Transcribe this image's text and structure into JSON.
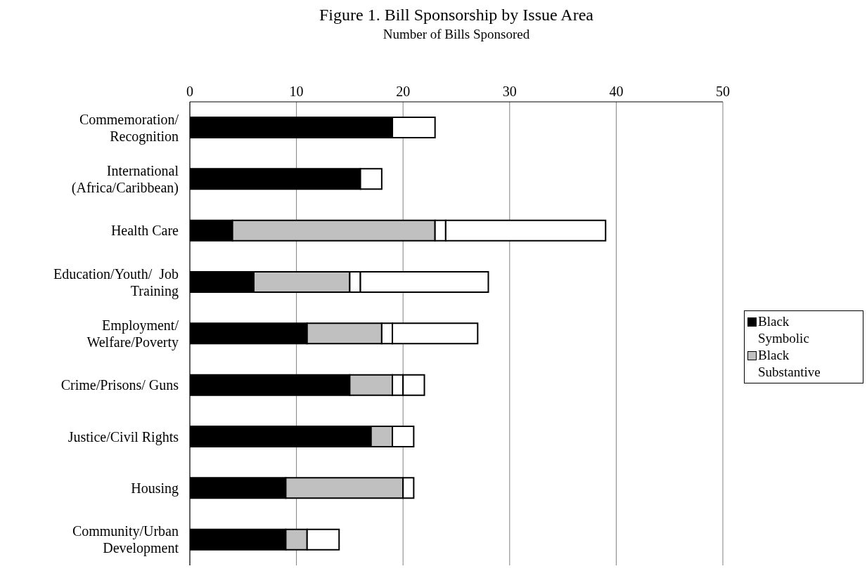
{
  "chart_data": {
    "type": "bar",
    "orientation": "horizontal",
    "stacked": true,
    "title": "Figure 1.  Bill Sponsorship by Issue Area",
    "xlabel": "Number of Bills Sponsored",
    "categories": [
      "Commemoration/ Recognition",
      "International (Africa/Caribbean)",
      "Health Care",
      "Education/Youth/  Job Training",
      "Employment/ Welfare/Poverty",
      "Crime/Prisons/ Guns",
      "Justice/Civil Rights",
      "Housing",
      "Community/Urban Development"
    ],
    "series": [
      {
        "name": "Black Symbolic",
        "color": "#000000",
        "values": [
          19,
          16,
          4,
          6,
          11,
          15,
          17,
          9,
          9
        ]
      },
      {
        "name": "Black Substantive",
        "color": "#c0c0c0",
        "values": [
          0,
          0,
          19,
          9,
          7,
          4,
          2,
          11,
          2
        ]
      },
      {
        "color": "#ffffff",
        "values": [
          4,
          2,
          1,
          1,
          1,
          1,
          2,
          0,
          0
        ]
      },
      {
        "color": "#ffffff",
        "values": [
          0,
          0,
          15,
          12,
          8,
          2,
          0,
          1,
          3
        ]
      }
    ],
    "xlim": [
      0,
      50
    ],
    "xticks": [
      0,
      10,
      20,
      30,
      40,
      50
    ],
    "grid": "x",
    "legend": "right"
  }
}
